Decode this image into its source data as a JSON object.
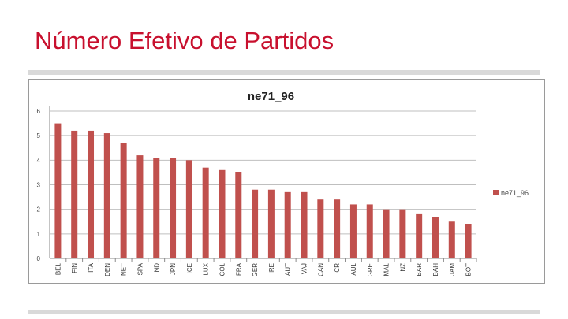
{
  "slide": {
    "title": "Número Efetivo de Partidos"
  },
  "colors": {
    "title": "#c8102e",
    "bar": "#c0504d",
    "grid": "#bfbfbf",
    "rule": "#d9d9d9"
  },
  "chart_data": {
    "type": "bar",
    "title": "ne71_96",
    "xlabel": "",
    "ylabel": "",
    "ylim": [
      0,
      6
    ],
    "yticks": [
      0,
      1,
      2,
      3,
      4,
      5,
      6
    ],
    "grid": true,
    "legend_position": "right",
    "categories": [
      "BEL",
      "FIN",
      "ITA",
      "DEN",
      "NET",
      "SPA",
      "IND",
      "JPN",
      "ICE",
      "LUX",
      "COL",
      "FRA",
      "GER",
      "IRE",
      "AUT",
      "VAJ",
      "CAN",
      "CR",
      "AUL",
      "GRE",
      "MAL",
      "NZ",
      "BAR",
      "BAH",
      "JAM",
      "BOT"
    ],
    "series": [
      {
        "name": "ne71_96",
        "values": [
          5.5,
          5.2,
          5.2,
          5.1,
          4.7,
          4.2,
          4.1,
          4.1,
          4.0,
          3.7,
          3.6,
          3.5,
          2.8,
          2.8,
          2.7,
          2.7,
          2.4,
          2.4,
          2.2,
          2.2,
          2.0,
          2.0,
          1.8,
          1.7,
          1.5,
          1.4
        ]
      }
    ]
  }
}
